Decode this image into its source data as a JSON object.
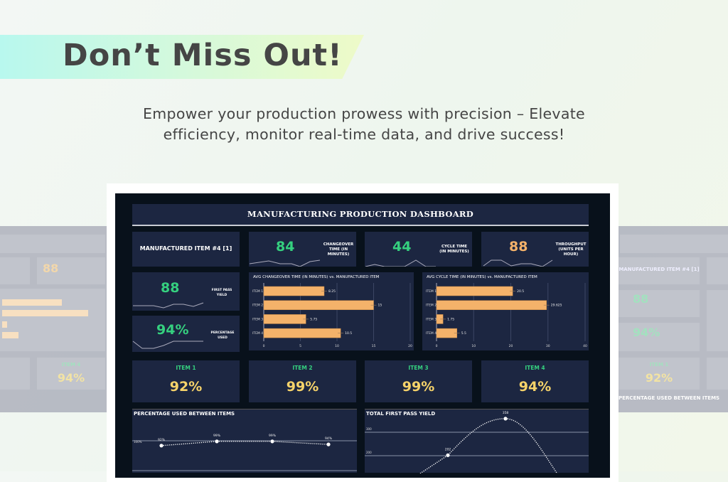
{
  "promo": {
    "headline": "Don’t Miss Out!",
    "subtitle_line1": "Empower your production prowess with precision – Elevate",
    "subtitle_line2": "efficiency, monitor real-time data, and drive success!"
  },
  "dashboard": {
    "title": "MANUFACTURING PRODUCTION DASHBOARD",
    "selected_item": "MANUFACTURED ITEM #4 [1]",
    "kpis": [
      {
        "value": "84",
        "label": "CHANGEOVER TIME (IN MINUTES)",
        "color": "#35d07f"
      },
      {
        "value": "44",
        "label": "CYCLE TIME (IN MINUTES)",
        "color": "#35d07f"
      },
      {
        "value": "88",
        "label": "THROUGHPUT (UNITS PER HOUR)",
        "color": "#f4b26a"
      },
      {
        "value": "88",
        "label": "FIRST PASS YIELD",
        "color": "#35d07f"
      },
      {
        "value": "94%",
        "label": "PERCENTAGE USED",
        "color": "#35d07f"
      }
    ],
    "items": [
      {
        "label": "ITEM 1",
        "value": "92%"
      },
      {
        "label": "ITEM 2",
        "value": "99%"
      },
      {
        "label": "ITEM 3",
        "value": "99%"
      },
      {
        "label": "ITEM 4",
        "value": "94%"
      }
    ]
  },
  "chart_data": [
    {
      "type": "bar",
      "orientation": "horizontal",
      "title": "AVG CHANGEOVER TIME (IN MINUTES) vs. MANUFACTURED ITEM",
      "categories": [
        "ITEM 1",
        "ITEM 2",
        "ITEM 3",
        "ITEM 4"
      ],
      "values": [
        8.25,
        15,
        5.75,
        10.5
      ],
      "value_labels": [
        "8.25",
        "15",
        "5.75",
        "10.5"
      ],
      "xlim": [
        0,
        20
      ],
      "xticks": [
        "0",
        "5",
        "10",
        "15",
        "20"
      ],
      "bar_color": "#f4b26a",
      "grid": true
    },
    {
      "type": "bar",
      "orientation": "horizontal",
      "title": "AVG CYCLE TIME (IN MINUTES) vs. MANUFACTURED ITEM",
      "categories": [
        "ITEM 1",
        "ITEM 2",
        "ITEM 3",
        "ITEM 4"
      ],
      "values": [
        20.5,
        29.625,
        1.75,
        5.5
      ],
      "value_labels": [
        "20.5",
        "29.625",
        "1.75",
        "5.5"
      ],
      "xlim": [
        0,
        40
      ],
      "xticks": [
        "0",
        "10",
        "20",
        "30",
        "40"
      ],
      "bar_color": "#f4b26a",
      "grid": true
    },
    {
      "type": "line",
      "title": "PERCENTAGE USED BETWEEN ITEMS",
      "values": [
        92,
        99,
        99,
        94
      ],
      "value_labels": [
        "92%",
        "99%",
        "99%",
        "94%"
      ],
      "yticks": [
        "100%"
      ],
      "line_style": "dotted"
    },
    {
      "type": "line",
      "title": "TOTAL FIRST PASS YIELD",
      "values": [
        202,
        358
      ],
      "value_labels": [
        "202",
        "358"
      ],
      "yticks": [
        "300",
        "200"
      ],
      "line_style": "dotted"
    }
  ]
}
